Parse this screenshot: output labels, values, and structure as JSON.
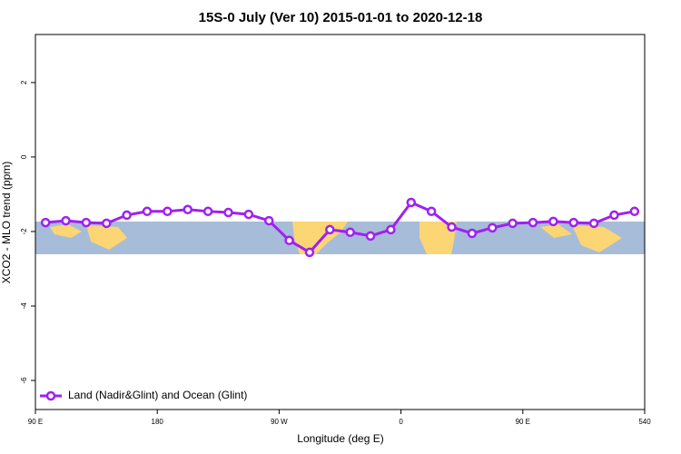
{
  "chart_data": {
    "type": "line",
    "title": "15S-0 July (Ver 10)   2015-01-01 to 2020-12-18",
    "xlabel": "Longitude (deg E)",
    "ylabel": "XCO2 - MLO trend (ppm)",
    "x": [
      97.5,
      112.5,
      127.5,
      142.5,
      157.5,
      172.5,
      187.5,
      202.5,
      217.5,
      232.5,
      247.5,
      262.5,
      277.5,
      292.5,
      307.5,
      322.5,
      337.5,
      352.5,
      367.5,
      382.5,
      397.5,
      412.5,
      427.5,
      442.5,
      457.5,
      472.5,
      487.5,
      502.5,
      517.5,
      532.5
    ],
    "series": [
      {
        "name": "Land (Nadir&Glint) and Ocean (Glint)",
        "color": "#a020f0",
        "values": [
          -1.76,
          -1.71,
          -1.76,
          -1.78,
          -1.56,
          -1.46,
          -1.46,
          -1.41,
          -1.46,
          -1.49,
          -1.54,
          -1.71,
          -2.24,
          -2.56,
          -1.95,
          -2.02,
          -2.12,
          -1.95,
          -1.22,
          -1.46,
          -1.88,
          -2.05,
          -1.9,
          -1.78,
          -1.76,
          -1.73,
          -1.76,
          -1.78,
          -1.56,
          -1.46
        ]
      }
    ],
    "xlim": [
      90,
      540
    ],
    "xticks": [
      {
        "value": 90,
        "label": "90 E"
      },
      180,
      {
        "value": 270,
        "label": "90 W"
      },
      {
        "value": 360,
        "label": "0"
      },
      {
        "value": 450,
        "label": "90 E"
      },
      540
    ],
    "ylim": [
      -6.78,
      3.29
    ],
    "yticks": [
      2,
      0,
      -2,
      -4,
      -6
    ],
    "legend": "bottom-left"
  }
}
